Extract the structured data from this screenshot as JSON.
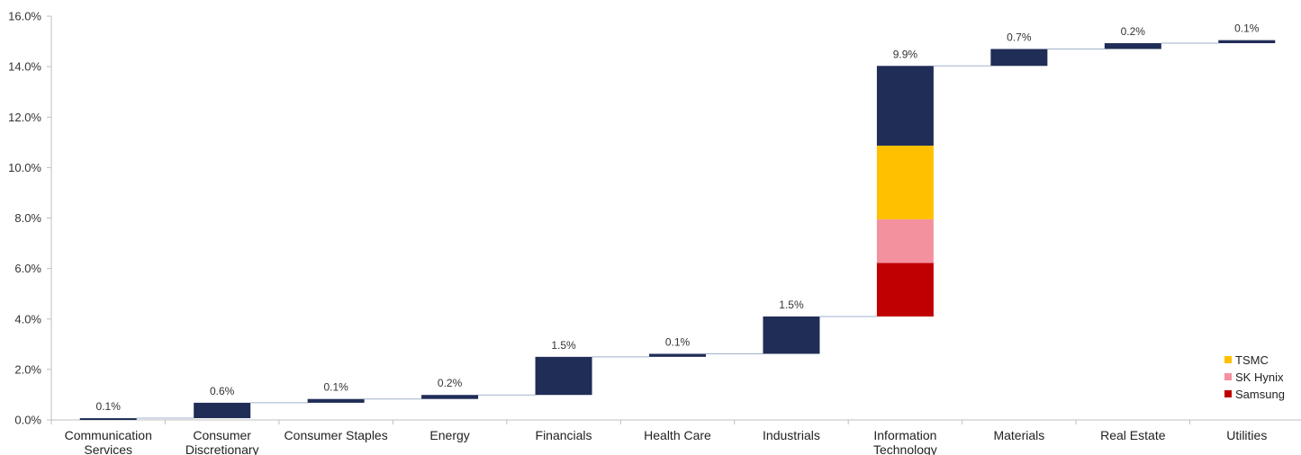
{
  "chart_data": {
    "type": "bar",
    "subtype": "waterfall",
    "title": "",
    "xlabel": "",
    "ylabel": "",
    "ylim": [
      0,
      16
    ],
    "y_ticks": [
      "0.0%",
      "2.0%",
      "4.0%",
      "6.0%",
      "8.0%",
      "10.0%",
      "12.0%",
      "14.0%",
      "16.0%"
    ],
    "y_tick_values": [
      0,
      2,
      4,
      6,
      8,
      10,
      12,
      14,
      16
    ],
    "grid": false,
    "legend_position": "bottom-right",
    "categories": [
      [
        "Communication",
        "Services"
      ],
      [
        "Consumer",
        "Discretionary"
      ],
      [
        "Consumer Staples"
      ],
      [
        "Energy"
      ],
      [
        "Financials"
      ],
      [
        "Health Care"
      ],
      [
        "Industrials"
      ],
      [
        "Information",
        "Technology"
      ],
      [
        "Materials"
      ],
      [
        "Real Estate"
      ],
      [
        "Utilities"
      ]
    ],
    "steps": [
      {
        "label": "0.1%",
        "start": 0.0,
        "end": 0.07
      },
      {
        "label": "0.6%",
        "start": 0.07,
        "end": 0.68
      },
      {
        "label": "0.1%",
        "start": 0.68,
        "end": 0.83
      },
      {
        "label": "0.2%",
        "start": 0.83,
        "end": 0.99
      },
      {
        "label": "1.5%",
        "start": 0.99,
        "end": 2.5
      },
      {
        "label": "0.1%",
        "start": 2.5,
        "end": 2.62
      },
      {
        "label": "1.5%",
        "start": 2.62,
        "end": 4.1
      },
      {
        "label": "9.9%",
        "start": 4.1,
        "end": 14.03,
        "segments": [
          {
            "series": "Samsung",
            "start": 4.1,
            "end": 6.22
          },
          {
            "series": "SK Hynix",
            "start": 6.22,
            "end": 7.95
          },
          {
            "series": "TSMC",
            "start": 7.95,
            "end": 10.87
          },
          {
            "series": "",
            "start": 10.87,
            "end": 14.03
          }
        ]
      },
      {
        "label": "0.7%",
        "start": 14.03,
        "end": 14.7
      },
      {
        "label": "0.2%",
        "start": 14.7,
        "end": 14.93
      },
      {
        "label": "0.1%",
        "start": 14.93,
        "end": 15.05
      }
    ],
    "series": [
      {
        "name": "TSMC",
        "color": "#FFC000"
      },
      {
        "name": "SK Hynix",
        "color": "#F4919F"
      },
      {
        "name": "Samsung",
        "color": "#C00000"
      }
    ],
    "default_bar_color": "#202D57",
    "connector_color": "#9FB2CC"
  }
}
